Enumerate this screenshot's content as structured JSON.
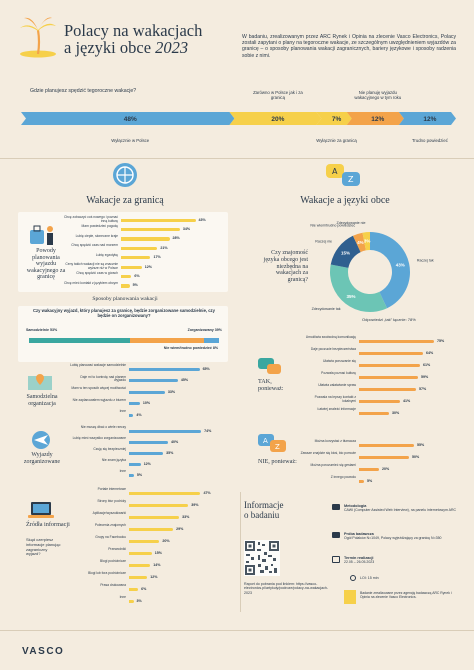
{
  "header": {
    "title_line1": "Polacy na wakacjach",
    "title_line2": "a języki obce",
    "year": "2023",
    "intro": "W badaniu, zrealizowanym przez ARC Rynek i Opinia na zlecenie Vasco Electronics, Polacy zostali zapytani o plany na tegoroczne wakacje, ze szczególnym uwzględnieniem wyjazdów za granicę – o sposoby planowania wakacji zagranicznych, bariery językowe i sposoby radzenia sobie z nimi."
  },
  "q1": {
    "question": "Gdzie planujesz spędzić tegoroczne wakacje?",
    "segments": [
      {
        "label": "Wyłącznie w Polsce",
        "value": "48%",
        "pct": 48,
        "color": "#5ba6d6"
      },
      {
        "label": "Zarówno w Polsce jak i za granicą",
        "value": "20%",
        "pct": 20,
        "color": "#f6d04a"
      },
      {
        "label": "Wyłącznie za granicą",
        "value": "7%",
        "pct": 7,
        "color": "#f6d04a"
      },
      {
        "label": "Nie planuję wyjazdu wakacyjnego w tym roku",
        "value": "12%",
        "pct": 12,
        "color": "#f3a34a"
      },
      {
        "label": "Trudno powiedzieć",
        "value": "12%",
        "pct": 12,
        "color": "#5ba6d6"
      }
    ]
  },
  "left_panel": {
    "title": "Wakacje za granicą",
    "reasons_title": "Powody planowania wyjazdu wakacyjnego za granicę",
    "reasons": [
      {
        "label": "Chcę zobaczyć coś nowego i poznać inną kulturę",
        "value": "43%",
        "pct": 43
      },
      {
        "label": "Mam powiedzieć pogodę",
        "value": "34%",
        "pct": 34
      },
      {
        "label": "Lubię ciepłe, słoneczne kraje",
        "value": "28%",
        "pct": 28
      },
      {
        "label": "Chcę spędzić czas nad morzem",
        "value": "21%",
        "pct": 21
      },
      {
        "label": "Lubię egzotykę",
        "value": "17%",
        "pct": 17
      },
      {
        "label": "Ceny takich wakacji nie są znacznie wyższe niż w Polsce",
        "value": "12%",
        "pct": 12
      },
      {
        "label": "Chcę spędzić czas w górach",
        "value": "6%",
        "pct": 6
      },
      {
        "label": "Chcę mieć kontakt z językiem obcym",
        "value": "5%",
        "pct": 5
      }
    ],
    "planning_title": "Sposoby planowania wakacji",
    "planning_q": "Czy wakacyjny wyjazd, który planujesz za granicę, będzie zorganizowane samodzielnie, czy będzie on zorganizowany?",
    "split": [
      {
        "label": "Samodzielnie",
        "value": "53%",
        "pct": 53,
        "color": "#3aa7a0"
      },
      {
        "label": "Zorganizowany",
        "value": "39%",
        "pct": 39,
        "color": "#f3a34a"
      },
      {
        "label": "Nie wiem/trudno powiedzieć",
        "value": "8%",
        "pct": 8,
        "color": "#5ba6d6"
      }
    ],
    "self_title": "Samodzielna organizacja",
    "self_items": [
      {
        "label": "Lubię planować wakacje samodzielnie",
        "value": "65%",
        "pct": 65
      },
      {
        "label": "Daje mi to kontrolę nad planem wyjazdu",
        "value": "45%",
        "pct": 45
      },
      {
        "label": "Mam w ten sposób więcej możliwości",
        "value": "33%",
        "pct": 33
      },
      {
        "label": "Nie zaplanowałem wyjazdu z biurem",
        "value": "10%",
        "pct": 10
      },
      {
        "label": "Inne",
        "value": "4%",
        "pct": 4
      }
    ],
    "org_title": "Wyjazdy zorganizowane",
    "org_items": [
      {
        "label": "Nie muszę dbać o wiele rzeczy",
        "value": "74%",
        "pct": 74
      },
      {
        "label": "Lubię mieć wszystko zorganizowane",
        "value": "40%",
        "pct": 40
      },
      {
        "label": "Czuję się bezpieczniej",
        "value": "35%",
        "pct": 35
      },
      {
        "label": "Nie znam języka",
        "value": "12%",
        "pct": 12
      },
      {
        "label": "Inne",
        "value": "5%",
        "pct": 5
      }
    ],
    "src_title": "Źródła informacji",
    "src_sub": "Skąd czerpiesz informacje planując zagraniczny wyjazd?",
    "src_items": [
      {
        "label": "Portale internetowe",
        "value": "47%",
        "pct": 47
      },
      {
        "label": "Strony biur podróży",
        "value": "39%",
        "pct": 39
      },
      {
        "label": "Aplikacje/wyszukiwarki",
        "value": "33%",
        "pct": 33
      },
      {
        "label": "Polecenia znajomych",
        "value": "29%",
        "pct": 29
      },
      {
        "label": "Grupy na Facebooku",
        "value": "20%",
        "pct": 20
      },
      {
        "label": "Przewodniki",
        "value": "15%",
        "pct": 15
      },
      {
        "label": "Blogi podróżnicze",
        "value": "14%",
        "pct": 14
      },
      {
        "label": "Blogi lub fora podróżnicze",
        "value": "12%",
        "pct": 12
      },
      {
        "label": "Prasa drukowana",
        "value": "6%",
        "pct": 6
      },
      {
        "label": "Inne",
        "value": "3%",
        "pct": 3
      }
    ]
  },
  "right_panel": {
    "title": "Wakacje a języki obce",
    "donut_q": "Czy znajomość języka obcego jest niezbędna na wakacjach za granicą?",
    "donut": [
      {
        "label": "Raczej tak",
        "value": "43%",
        "pct": 43,
        "color": "#5ba6d6"
      },
      {
        "label": "Zdecydowanie tak",
        "value": "35%",
        "pct": 35,
        "color": "#6cc5b5"
      },
      {
        "label": "Raczej nie",
        "value": "15%",
        "pct": 15,
        "color": "#2f5f8f"
      },
      {
        "label": "Nie wiem/trudno powiedzieć",
        "value": "4%",
        "pct": 4,
        "color": "#f3a34a"
      },
      {
        "label": "Zdecydowanie nie",
        "value": "3%",
        "pct": 3,
        "color": "#f6d04a"
      }
    ],
    "donut_note": "Odpowiedzi „tak” łącznie: 78%",
    "yes_title": "TAK, ponieważ:",
    "yes_items": [
      {
        "label": "Umożliwia swobodną komunikację",
        "value": "75%",
        "pct": 75
      },
      {
        "label": "Daje poczucie bezpieczeństwa",
        "value": "64%",
        "pct": 64
      },
      {
        "label": "Ułatwia poruszanie się",
        "value": "61%",
        "pct": 61
      },
      {
        "label": "Pozwala poznać kulturę",
        "value": "59%",
        "pct": 59
      },
      {
        "label": "Ułatwia załatwianie spraw",
        "value": "57%",
        "pct": 57
      },
      {
        "label": "Pozwala na lepszy kontakt z lokalnymi",
        "value": "41%",
        "pct": 41
      },
      {
        "label": "Łatwiej znaleźć informacje",
        "value": "30%",
        "pct": 30
      }
    ],
    "no_title": "NIE, ponieważ:",
    "no_items": [
      {
        "label": "Można korzystać z tłumacza",
        "value": "55%",
        "pct": 55
      },
      {
        "label": "Zawsze znajdzie się ktoś, kto pomoże",
        "value": "50%",
        "pct": 50
      },
      {
        "label": "Można porozumieć się gestami",
        "value": "20%",
        "pct": 20
      },
      {
        "label": "Z innego powodu",
        "value": "5%",
        "pct": 5
      }
    ]
  },
  "about": {
    "title_line1": "Informacje",
    "title_line2": "o badaniu",
    "report": "Raport do pobrania pod linkiem: https://vasco-electronics.pl/artykuly/podroze/polacy-na-wakacjach-2023",
    "method_title": "Metodologia",
    "method": "CAWI (Computer Assisted Web Interview), na panelu internetowym ARC",
    "sample_title": "Próba badawcza",
    "sample": "Ogół Polaków N=1049, Polacy wyjeżdżający za granicę N=350",
    "date_title": "Termin realizacji",
    "date": "22.05 – 26.05.2023",
    "loi": "LOI: 15 min",
    "partner": "Badanie zrealizowane przez agencję badawczą ARC Rynek i Opinia na zlecenie Vasco Electronics."
  },
  "footer": {
    "brand": "VASCO"
  },
  "colors": {
    "bg": "#f4ecdf",
    "navy": "#2b3a4a",
    "blue": "#5ba6d6",
    "orange": "#f3a34a",
    "yellow": "#f6d04a",
    "teal": "#3aa7a0"
  }
}
